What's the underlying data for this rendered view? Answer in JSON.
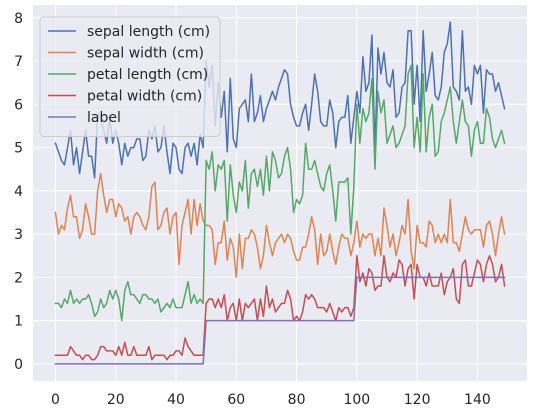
{
  "chart_data": {
    "type": "line",
    "title": "",
    "xlabel": "",
    "ylabel": "",
    "xlim": [
      -7.45,
      156.45
    ],
    "ylim": [
      -0.395,
      8.295
    ],
    "xticks": [
      0,
      20,
      40,
      60,
      80,
      100,
      120,
      140
    ],
    "yticks": [
      0,
      1,
      2,
      3,
      4,
      5,
      6,
      7,
      8
    ],
    "grid": true,
    "legend_position": "top-left",
    "style": {
      "plot_background": "#EAEAF2",
      "grid_color": "#FFFFFF"
    },
    "x": [
      0,
      1,
      2,
      3,
      4,
      5,
      6,
      7,
      8,
      9,
      10,
      11,
      12,
      13,
      14,
      15,
      16,
      17,
      18,
      19,
      20,
      21,
      22,
      23,
      24,
      25,
      26,
      27,
      28,
      29,
      30,
      31,
      32,
      33,
      34,
      35,
      36,
      37,
      38,
      39,
      40,
      41,
      42,
      43,
      44,
      45,
      46,
      47,
      48,
      49,
      50,
      51,
      52,
      53,
      54,
      55,
      56,
      57,
      58,
      59,
      60,
      61,
      62,
      63,
      64,
      65,
      66,
      67,
      68,
      69,
      70,
      71,
      72,
      73,
      74,
      75,
      76,
      77,
      78,
      79,
      80,
      81,
      82,
      83,
      84,
      85,
      86,
      87,
      88,
      89,
      90,
      91,
      92,
      93,
      94,
      95,
      96,
      97,
      98,
      99,
      100,
      101,
      102,
      103,
      104,
      105,
      106,
      107,
      108,
      109,
      110,
      111,
      112,
      113,
      114,
      115,
      116,
      117,
      118,
      119,
      120,
      121,
      122,
      123,
      124,
      125,
      126,
      127,
      128,
      129,
      130,
      131,
      132,
      133,
      134,
      135,
      136,
      137,
      138,
      139,
      140,
      141,
      142,
      143,
      144,
      145,
      146,
      147,
      148,
      149
    ],
    "series": [
      {
        "name": "sepal length (cm)",
        "color": "#4C72B0",
        "values": [
          5.1,
          4.9,
          4.7,
          4.6,
          5.0,
          5.4,
          4.6,
          5.0,
          4.4,
          4.9,
          5.4,
          4.8,
          4.8,
          4.3,
          5.8,
          5.7,
          5.4,
          5.1,
          5.7,
          5.1,
          5.4,
          5.1,
          4.6,
          5.1,
          4.8,
          5.0,
          5.0,
          5.2,
          5.2,
          4.7,
          4.8,
          5.4,
          5.2,
          5.5,
          4.9,
          5.0,
          5.5,
          4.9,
          4.4,
          5.1,
          5.0,
          4.5,
          4.4,
          5.0,
          5.1,
          4.8,
          5.1,
          4.6,
          5.3,
          5.0,
          7.0,
          6.4,
          6.9,
          5.5,
          6.5,
          5.7,
          6.3,
          4.9,
          6.6,
          5.2,
          5.0,
          5.9,
          6.0,
          6.1,
          5.6,
          6.7,
          5.6,
          5.8,
          6.2,
          5.6,
          5.9,
          6.1,
          6.3,
          6.1,
          6.4,
          6.6,
          6.8,
          6.7,
          6.0,
          5.7,
          5.5,
          5.5,
          5.8,
          6.0,
          5.4,
          6.0,
          6.7,
          6.3,
          5.6,
          5.5,
          5.5,
          6.1,
          5.8,
          5.0,
          5.6,
          5.7,
          5.7,
          6.2,
          5.1,
          5.7,
          6.3,
          5.8,
          7.1,
          6.3,
          6.5,
          7.6,
          4.9,
          7.3,
          6.7,
          7.2,
          6.5,
          6.4,
          6.8,
          5.7,
          5.8,
          6.4,
          6.5,
          7.7,
          7.7,
          6.0,
          6.9,
          5.6,
          7.7,
          6.3,
          6.7,
          7.2,
          6.2,
          6.1,
          6.4,
          7.2,
          7.4,
          7.9,
          6.4,
          6.3,
          6.1,
          7.7,
          6.3,
          6.4,
          6.0,
          6.9,
          6.7,
          6.9,
          5.8,
          6.8,
          6.7,
          6.7,
          6.3,
          6.5,
          6.2,
          5.9
        ]
      },
      {
        "name": "sepal width (cm)",
        "color": "#DD8452",
        "values": [
          3.5,
          3.0,
          3.2,
          3.1,
          3.6,
          3.9,
          3.4,
          3.4,
          2.9,
          3.1,
          3.7,
          3.4,
          3.0,
          3.0,
          4.0,
          4.4,
          3.9,
          3.5,
          3.8,
          3.8,
          3.4,
          3.7,
          3.6,
          3.3,
          3.4,
          3.0,
          3.4,
          3.5,
          3.4,
          3.2,
          3.1,
          3.4,
          4.1,
          4.2,
          3.1,
          3.2,
          3.5,
          3.6,
          3.0,
          3.4,
          3.5,
          2.3,
          3.2,
          3.5,
          3.8,
          3.0,
          3.8,
          3.2,
          3.7,
          3.3,
          3.2,
          3.2,
          3.1,
          2.3,
          2.8,
          2.8,
          3.3,
          2.4,
          2.9,
          2.7,
          2.0,
          3.0,
          2.2,
          2.9,
          2.9,
          3.1,
          3.0,
          2.7,
          2.2,
          2.5,
          3.2,
          2.8,
          2.5,
          2.8,
          2.9,
          3.0,
          2.8,
          3.0,
          2.9,
          2.6,
          2.4,
          2.4,
          2.7,
          2.7,
          3.0,
          3.4,
          3.1,
          2.3,
          3.0,
          2.5,
          2.6,
          3.0,
          2.6,
          2.3,
          2.7,
          3.0,
          2.9,
          2.9,
          2.5,
          2.8,
          3.3,
          2.7,
          3.0,
          2.9,
          3.0,
          3.0,
          2.5,
          2.9,
          2.5,
          3.6,
          3.2,
          2.7,
          3.0,
          2.5,
          2.8,
          3.2,
          3.0,
          3.8,
          2.6,
          2.2,
          3.2,
          2.8,
          2.8,
          2.7,
          3.3,
          3.2,
          2.8,
          3.0,
          2.8,
          3.0,
          2.8,
          3.8,
          2.8,
          2.8,
          2.6,
          3.0,
          3.4,
          3.1,
          3.0,
          3.1,
          3.1,
          3.1,
          2.7,
          3.2,
          3.3,
          3.0,
          2.5,
          3.0,
          3.4,
          3.0
        ]
      },
      {
        "name": "petal length (cm)",
        "color": "#55A868",
        "values": [
          1.4,
          1.4,
          1.3,
          1.5,
          1.4,
          1.7,
          1.4,
          1.5,
          1.4,
          1.5,
          1.5,
          1.6,
          1.4,
          1.1,
          1.2,
          1.5,
          1.3,
          1.4,
          1.7,
          1.5,
          1.7,
          1.5,
          1.0,
          1.7,
          1.9,
          1.6,
          1.6,
          1.5,
          1.4,
          1.6,
          1.6,
          1.5,
          1.5,
          1.4,
          1.5,
          1.2,
          1.3,
          1.4,
          1.3,
          1.5,
          1.3,
          1.3,
          1.3,
          1.6,
          1.9,
          1.4,
          1.6,
          1.4,
          1.5,
          1.4,
          4.7,
          4.5,
          4.9,
          4.0,
          4.6,
          4.5,
          4.7,
          3.3,
          4.6,
          3.9,
          3.5,
          4.2,
          4.0,
          4.7,
          3.6,
          4.4,
          4.5,
          4.1,
          4.5,
          3.9,
          4.8,
          4.0,
          4.9,
          4.7,
          4.3,
          4.4,
          4.8,
          5.0,
          4.5,
          3.5,
          3.8,
          3.7,
          3.9,
          5.1,
          4.5,
          4.5,
          4.7,
          4.4,
          4.1,
          4.0,
          4.4,
          4.6,
          4.0,
          3.3,
          4.2,
          4.2,
          4.2,
          4.3,
          3.0,
          4.1,
          6.0,
          5.1,
          5.9,
          5.6,
          5.8,
          6.6,
          4.5,
          6.3,
          5.8,
          6.1,
          5.1,
          5.3,
          5.5,
          5.0,
          5.1,
          5.3,
          5.5,
          6.7,
          6.9,
          5.0,
          5.7,
          4.9,
          6.7,
          4.9,
          5.7,
          6.0,
          4.8,
          4.9,
          5.6,
          5.8,
          6.1,
          6.4,
          5.6,
          5.1,
          5.6,
          6.1,
          5.6,
          5.5,
          4.8,
          5.4,
          5.6,
          5.1,
          5.1,
          5.9,
          5.7,
          5.2,
          5.0,
          5.2,
          5.4,
          5.1
        ]
      },
      {
        "name": "petal width (cm)",
        "color": "#C44E52",
        "values": [
          0.2,
          0.2,
          0.2,
          0.2,
          0.2,
          0.4,
          0.3,
          0.2,
          0.2,
          0.1,
          0.2,
          0.2,
          0.1,
          0.1,
          0.2,
          0.4,
          0.4,
          0.3,
          0.3,
          0.3,
          0.2,
          0.4,
          0.2,
          0.5,
          0.2,
          0.2,
          0.4,
          0.2,
          0.2,
          0.2,
          0.2,
          0.4,
          0.1,
          0.2,
          0.2,
          0.2,
          0.2,
          0.1,
          0.2,
          0.2,
          0.3,
          0.3,
          0.2,
          0.6,
          0.4,
          0.3,
          0.2,
          0.2,
          0.2,
          0.2,
          1.4,
          1.5,
          1.5,
          1.3,
          1.5,
          1.3,
          1.6,
          1.0,
          1.3,
          1.4,
          1.0,
          1.5,
          1.0,
          1.4,
          1.3,
          1.4,
          1.5,
          1.0,
          1.5,
          1.1,
          1.8,
          1.3,
          1.5,
          1.2,
          1.3,
          1.4,
          1.4,
          1.7,
          1.5,
          1.0,
          1.1,
          1.0,
          1.2,
          1.6,
          1.5,
          1.6,
          1.5,
          1.3,
          1.3,
          1.3,
          1.2,
          1.4,
          1.2,
          1.0,
          1.3,
          1.2,
          1.3,
          1.3,
          1.1,
          1.3,
          2.5,
          1.9,
          2.1,
          1.8,
          2.2,
          2.1,
          1.7,
          1.8,
          1.8,
          2.5,
          2.0,
          1.9,
          2.1,
          2.0,
          2.4,
          2.3,
          1.8,
          2.2,
          2.3,
          1.5,
          2.3,
          2.0,
          2.0,
          1.8,
          2.1,
          1.8,
          1.8,
          1.8,
          2.1,
          1.6,
          1.9,
          2.0,
          2.2,
          1.5,
          1.4,
          2.3,
          2.4,
          1.8,
          1.8,
          2.1,
          2.4,
          2.3,
          1.9,
          2.3,
          2.5,
          2.3,
          1.9,
          2.0,
          2.3,
          1.8
        ]
      },
      {
        "name": "label",
        "color": "#8172B3",
        "values": [
          0,
          0,
          0,
          0,
          0,
          0,
          0,
          0,
          0,
          0,
          0,
          0,
          0,
          0,
          0,
          0,
          0,
          0,
          0,
          0,
          0,
          0,
          0,
          0,
          0,
          0,
          0,
          0,
          0,
          0,
          0,
          0,
          0,
          0,
          0,
          0,
          0,
          0,
          0,
          0,
          0,
          0,
          0,
          0,
          0,
          0,
          0,
          0,
          0,
          0,
          1,
          1,
          1,
          1,
          1,
          1,
          1,
          1,
          1,
          1,
          1,
          1,
          1,
          1,
          1,
          1,
          1,
          1,
          1,
          1,
          1,
          1,
          1,
          1,
          1,
          1,
          1,
          1,
          1,
          1,
          1,
          1,
          1,
          1,
          1,
          1,
          1,
          1,
          1,
          1,
          1,
          1,
          1,
          1,
          1,
          1,
          1,
          1,
          1,
          1,
          2,
          2,
          2,
          2,
          2,
          2,
          2,
          2,
          2,
          2,
          2,
          2,
          2,
          2,
          2,
          2,
          2,
          2,
          2,
          2,
          2,
          2,
          2,
          2,
          2,
          2,
          2,
          2,
          2,
          2,
          2,
          2,
          2,
          2,
          2,
          2,
          2,
          2,
          2,
          2,
          2,
          2,
          2,
          2,
          2,
          2,
          2,
          2,
          2,
          2
        ]
      }
    ]
  }
}
